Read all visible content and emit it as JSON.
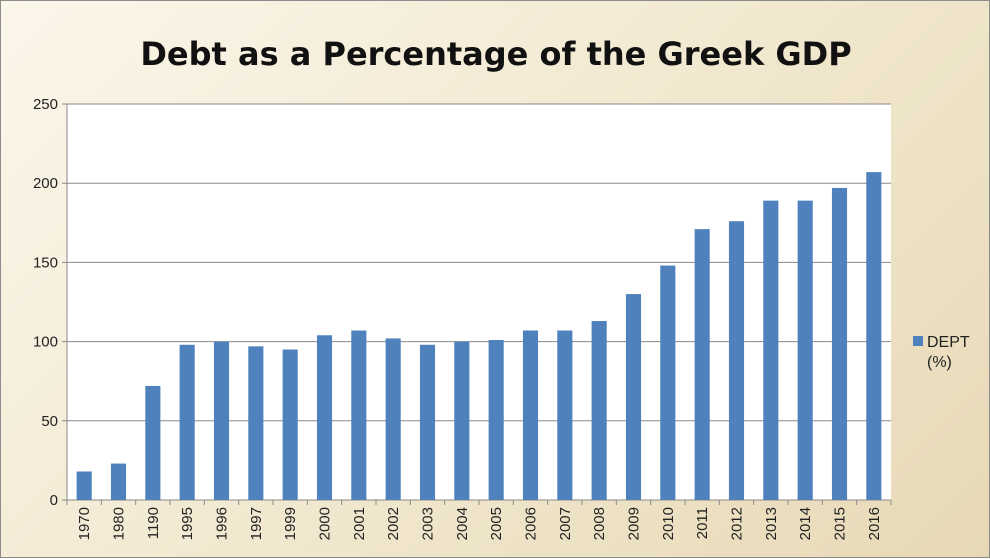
{
  "chart_data": {
    "type": "bar",
    "title": "Debt as a Percentage of the Greek GDP",
    "categories": [
      "1970",
      "1980",
      "1190",
      "1995",
      "1996",
      "1997",
      "1999",
      "2000",
      "2001",
      "2002",
      "2003",
      "2004",
      "2005",
      "2006",
      "2007",
      "2008",
      "2009",
      "2010",
      "2011",
      "2012",
      "2013",
      "2014",
      "2015",
      "2016"
    ],
    "series": [
      {
        "name": "DEPT (%)",
        "values": [
          18,
          23,
          72,
          98,
          100,
          97,
          95,
          104,
          107,
          102,
          98,
          100,
          101,
          107,
          107,
          113,
          130,
          148,
          171,
          176,
          189,
          189,
          197,
          207
        ],
        "color": "#4f81bd"
      }
    ],
    "ylim": [
      0,
      250
    ],
    "yticks": [
      "0",
      "50",
      "100",
      "150",
      "200",
      "250"
    ],
    "grid": true,
    "legend_position": "right"
  }
}
